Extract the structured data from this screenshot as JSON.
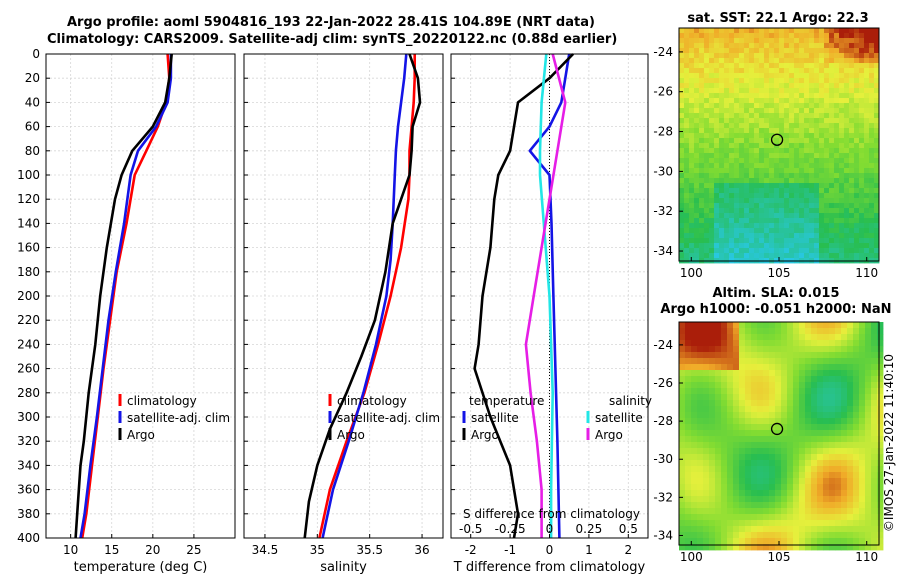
{
  "header": {
    "line1": "Argo profile: aoml 5904816_193 22-Jan-2022 28.41S 104.89E (NRT data)",
    "line2": "Climatology: CARS2009. Satellite-adj clim: synTS_20220122.nc (0.88d earlier)"
  },
  "footer": {
    "stamp": "©IMOS 27-Jan-2022 11:40:10"
  },
  "colors": {
    "clim": "#ff0000",
    "sat": "#1414e6",
    "argo": "#000000",
    "sat_s": "#22e6e6",
    "argo_s": "#e61ee6"
  },
  "chart_data": [
    {
      "id": "temperature",
      "type": "line",
      "xlabel": "temperature (deg C)",
      "xlim": [
        7,
        30
      ],
      "xticks": [
        10,
        15,
        20,
        25
      ],
      "ylim": [
        0,
        400
      ],
      "yticks": [
        0,
        20,
        40,
        60,
        80,
        100,
        120,
        140,
        160,
        180,
        200,
        220,
        240,
        260,
        280,
        300,
        320,
        340,
        360,
        380,
        400
      ],
      "legend": [
        "climatology",
        "satellite-adj. clim",
        "Argo"
      ],
      "series": [
        {
          "name": "climatology",
          "color": "red",
          "points": [
            [
              21.8,
              0
            ],
            [
              22.0,
              20
            ],
            [
              21.6,
              40
            ],
            [
              20.6,
              60
            ],
            [
              19.2,
              80
            ],
            [
              17.8,
              100
            ],
            [
              16.8,
              140
            ],
            [
              15.6,
              180
            ],
            [
              14.8,
              220
            ],
            [
              14.0,
              260
            ],
            [
              13.3,
              300
            ],
            [
              12.6,
              340
            ],
            [
              11.9,
              380
            ],
            [
              11.4,
              400
            ]
          ]
        },
        {
          "name": "satellite-adj. clim",
          "color": "blue",
          "points": [
            [
              22.2,
              0
            ],
            [
              22.2,
              20
            ],
            [
              21.8,
              40
            ],
            [
              20.4,
              60
            ],
            [
              18.2,
              80
            ],
            [
              17.3,
              100
            ],
            [
              16.5,
              140
            ],
            [
              15.5,
              180
            ],
            [
              14.6,
              220
            ],
            [
              13.9,
              260
            ],
            [
              13.2,
              300
            ],
            [
              12.4,
              340
            ],
            [
              11.7,
              380
            ],
            [
              11.2,
              400
            ]
          ]
        },
        {
          "name": "Argo",
          "color": "black",
          "points": [
            [
              22.3,
              0
            ],
            [
              22.0,
              20
            ],
            [
              21.5,
              40
            ],
            [
              20.0,
              60
            ],
            [
              17.5,
              80
            ],
            [
              16.2,
              100
            ],
            [
              15.4,
              120
            ],
            [
              14.4,
              160
            ],
            [
              13.6,
              200
            ],
            [
              13.0,
              240
            ],
            [
              12.2,
              280
            ],
            [
              11.6,
              320
            ],
            [
              11.2,
              340
            ],
            [
              10.8,
              380
            ],
            [
              10.6,
              400
            ]
          ]
        }
      ]
    },
    {
      "id": "salinity",
      "type": "line",
      "xlabel": "salinity",
      "xlim": [
        34.3,
        36.2
      ],
      "xticks": [
        34.5,
        35,
        35.5,
        36
      ],
      "xtick_labels": [
        "34.5",
        "35",
        "35.5",
        "36"
      ],
      "ylim": [
        0,
        400
      ],
      "legend": [
        "climatology",
        "satellite-adj. clim",
        "Argo"
      ],
      "series": [
        {
          "name": "climatology",
          "color": "red",
          "points": [
            [
              35.93,
              0
            ],
            [
              35.93,
              20
            ],
            [
              35.92,
              40
            ],
            [
              35.9,
              60
            ],
            [
              35.88,
              80
            ],
            [
              35.88,
              100
            ],
            [
              35.87,
              120
            ],
            [
              35.8,
              160
            ],
            [
              35.7,
              200
            ],
            [
              35.58,
              240
            ],
            [
              35.45,
              280
            ],
            [
              35.28,
              320
            ],
            [
              35.12,
              360
            ],
            [
              35.02,
              400
            ]
          ]
        },
        {
          "name": "satellite-adj. clim",
          "color": "blue",
          "points": [
            [
              35.85,
              0
            ],
            [
              35.83,
              20
            ],
            [
              35.8,
              40
            ],
            [
              35.77,
              60
            ],
            [
              35.75,
              80
            ],
            [
              35.74,
              100
            ],
            [
              35.72,
              140
            ],
            [
              35.7,
              170
            ],
            [
              35.66,
              200
            ],
            [
              35.56,
              240
            ],
            [
              35.44,
              280
            ],
            [
              35.3,
              320
            ],
            [
              35.15,
              360
            ],
            [
              35.05,
              400
            ]
          ]
        },
        {
          "name": "Argo",
          "color": "black",
          "points": [
            [
              35.88,
              0
            ],
            [
              35.96,
              20
            ],
            [
              35.98,
              40
            ],
            [
              35.91,
              60
            ],
            [
              35.9,
              80
            ],
            [
              35.88,
              100
            ],
            [
              35.8,
              120
            ],
            [
              35.72,
              140
            ],
            [
              35.65,
              180
            ],
            [
              35.55,
              220
            ],
            [
              35.42,
              250
            ],
            [
              35.28,
              280
            ],
            [
              35.12,
              310
            ],
            [
              35.0,
              340
            ],
            [
              34.92,
              370
            ],
            [
              34.88,
              400
            ]
          ]
        }
      ]
    },
    {
      "id": "difference",
      "type": "line",
      "xlabel": "T difference from climatology",
      "top_xlabel": "S difference from climatology",
      "xlim": [
        -2.5,
        2.5
      ],
      "xticks": [
        -2,
        -1,
        0,
        1,
        2
      ],
      "top_xlim": [
        -0.625,
        0.625
      ],
      "top_xticks": [
        -0.5,
        -0.25,
        0,
        0.25,
        0.5
      ],
      "top_xtick_labels": [
        "-0.5",
        "-0.25",
        "0",
        "0.25",
        "0.5"
      ],
      "ylim": [
        0,
        400
      ],
      "legend_temperature": {
        "title": "temperature",
        "items": [
          "satellite",
          "Argo"
        ]
      },
      "legend_salinity": {
        "title": "salinity",
        "items": [
          "satellite",
          "Argo"
        ]
      },
      "series": [
        {
          "name": "temperature satellite",
          "color": "blue",
          "axis": "T",
          "points": [
            [
              0.5,
              0
            ],
            [
              0.4,
              20
            ],
            [
              0.3,
              40
            ],
            [
              0.0,
              60
            ],
            [
              -0.5,
              80
            ],
            [
              0.0,
              100
            ],
            [
              0.05,
              140
            ],
            [
              0.1,
              200
            ],
            [
              0.15,
              260
            ],
            [
              0.2,
              320
            ],
            [
              0.25,
              400
            ]
          ]
        },
        {
          "name": "temperature Argo",
          "color": "black",
          "axis": "T",
          "points": [
            [
              0.6,
              0
            ],
            [
              0.0,
              20
            ],
            [
              -0.8,
              40
            ],
            [
              -1.0,
              80
            ],
            [
              -1.3,
              100
            ],
            [
              -1.4,
              120
            ],
            [
              -1.5,
              160
            ],
            [
              -1.7,
              200
            ],
            [
              -1.8,
              240
            ],
            [
              -1.9,
              260
            ],
            [
              -1.5,
              300
            ],
            [
              -1.0,
              340
            ],
            [
              -0.8,
              380
            ],
            [
              -0.9,
              400
            ]
          ]
        },
        {
          "name": "salinity satellite",
          "color": "cyan",
          "axis": "S",
          "points": [
            [
              -0.02,
              0
            ],
            [
              -0.05,
              40
            ],
            [
              -0.06,
              80
            ],
            [
              -0.06,
              100
            ],
            [
              0.0,
              200
            ],
            [
              0.02,
              280
            ],
            [
              0.01,
              360
            ],
            [
              0.01,
              400
            ]
          ]
        },
        {
          "name": "salinity Argo",
          "color": "magenta",
          "axis": "S",
          "points": [
            [
              0.02,
              0
            ],
            [
              0.1,
              40
            ],
            [
              0.05,
              80
            ],
            [
              0.0,
              120
            ],
            [
              -0.05,
              160
            ],
            [
              -0.1,
              200
            ],
            [
              -0.15,
              240
            ],
            [
              -0.12,
              280
            ],
            [
              -0.08,
              320
            ],
            [
              -0.05,
              360
            ],
            [
              -0.05,
              400
            ]
          ]
        }
      ]
    },
    {
      "id": "sst-map",
      "type": "heatmap",
      "title": "sat. SST: 22.1 Argo: 22.3",
      "xlim": [
        99.3,
        110.7
      ],
      "ylim": [
        -34.5,
        -22.8
      ],
      "xticks": [
        100,
        105,
        110
      ],
      "yticks": [
        -24,
        -26,
        -28,
        -30,
        -32,
        -34
      ],
      "marker": [
        104.89,
        -28.41
      ]
    },
    {
      "id": "sla-map",
      "type": "heatmap",
      "title": "Altim. SLA: 0.015",
      "subtitle": "Argo h1000: -0.051 h2000: NaN",
      "xlim": [
        99.3,
        110.7
      ],
      "ylim": [
        -34.5,
        -22.8
      ],
      "xticks": [
        100,
        105,
        110
      ],
      "yticks": [
        -24,
        -26,
        -28,
        -30,
        -32,
        -34
      ],
      "marker": [
        104.89,
        -28.41
      ]
    }
  ]
}
